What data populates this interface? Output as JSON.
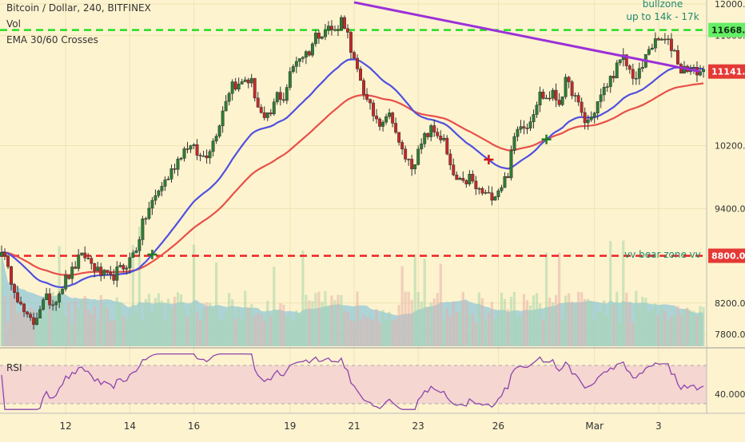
{
  "header": {
    "symbol": "Bitcoin / Dollar, 240, BITFINEX",
    "vol_label": "Vol",
    "ema_label": "EMA 30/60 Crosses",
    "rsi_label": "RSI"
  },
  "annotations": {
    "bull_zone_line1": "bullzone",
    "bull_zone_line2": "up to 14k - 17k",
    "bear_zone": "vv bear zone vv"
  },
  "colors": {
    "background": "#fdf3cf",
    "bull_candle": "#2e7d32",
    "bear_candle": "#c62828",
    "ema_fast": "#5050e0",
    "ema_slow": "#e8504a",
    "trendline": "#9b30d8",
    "bull_zone": "#22dd22",
    "bear_zone": "#ee2222",
    "volume_ma": "#8ac4d8",
    "rsi_line": "#8e44ad",
    "rsi_band": "#f5d6d0"
  },
  "chart_data": {
    "type": "candlestick",
    "price_axis": {
      "range": [
        7650,
        12050
      ],
      "ticks": [
        "12000.0",
        "11600.0",
        "10200.0",
        "9400.0",
        "8200.0",
        "7800.0"
      ],
      "tick_values": [
        12000,
        11600,
        10200,
        9400,
        8200,
        7800
      ]
    },
    "x_axis": {
      "ticks": [
        "12",
        "14",
        "16",
        "19",
        "21",
        "23",
        "26",
        "Mar",
        "3"
      ],
      "tick_bars": [
        20,
        40,
        60,
        90,
        110,
        130,
        155,
        185,
        205
      ]
    },
    "levels": {
      "bull_zone_price": 11668.6,
      "bull_zone_label": "11668.6",
      "bear_zone_price": 8800,
      "bear_zone_label": "8800.0",
      "last_price": 11141,
      "last_price_label": "11141.0"
    },
    "trendline": {
      "from": {
        "bar": 110,
        "price": 12020
      },
      "to": {
        "bar": 218,
        "price": 11141
      }
    },
    "price_path": [
      [
        0,
        8900
      ],
      [
        2,
        8600
      ],
      [
        4,
        8400
      ],
      [
        6,
        8150
      ],
      [
        8,
        8000
      ],
      [
        10,
        7950
      ],
      [
        12,
        8150
      ],
      [
        14,
        8250
      ],
      [
        16,
        8200
      ],
      [
        18,
        8350
      ],
      [
        20,
        8500
      ],
      [
        22,
        8600
      ],
      [
        24,
        8750
      ],
      [
        26,
        8800
      ],
      [
        28,
        8700
      ],
      [
        30,
        8600
      ],
      [
        32,
        8550
      ],
      [
        34,
        8500
      ],
      [
        36,
        8600
      ],
      [
        38,
        8650
      ],
      [
        40,
        8750
      ],
      [
        42,
        8900
      ],
      [
        44,
        9200
      ],
      [
        46,
        9400
      ],
      [
        48,
        9550
      ],
      [
        50,
        9700
      ],
      [
        52,
        9800
      ],
      [
        54,
        9950
      ],
      [
        56,
        10100
      ],
      [
        58,
        10200
      ],
      [
        60,
        10150
      ],
      [
        62,
        10050
      ],
      [
        64,
        10100
      ],
      [
        66,
        10250
      ],
      [
        68,
        10500
      ],
      [
        70,
        10800
      ],
      [
        72,
        11000
      ],
      [
        74,
        10950
      ],
      [
        76,
        11050
      ],
      [
        78,
        11000
      ],
      [
        80,
        10700
      ],
      [
        82,
        10500
      ],
      [
        84,
        10600
      ],
      [
        86,
        10850
      ],
      [
        88,
        10800
      ],
      [
        90,
        11100
      ],
      [
        92,
        11300
      ],
      [
        94,
        11350
      ],
      [
        96,
        11400
      ],
      [
        98,
        11600
      ],
      [
        100,
        11650
      ],
      [
        102,
        11700
      ],
      [
        104,
        11650
      ],
      [
        106,
        11800
      ],
      [
        107,
        11750
      ],
      [
        108,
        11600
      ],
      [
        109,
        11350
      ],
      [
        110,
        11250
      ],
      [
        112,
        11050
      ],
      [
        114,
        10750
      ],
      [
        116,
        10600
      ],
      [
        118,
        10500
      ],
      [
        120,
        10600
      ],
      [
        122,
        10550
      ],
      [
        124,
        10200
      ],
      [
        126,
        10050
      ],
      [
        128,
        9950
      ],
      [
        130,
        10100
      ],
      [
        132,
        10300
      ],
      [
        134,
        10400
      ],
      [
        136,
        10350
      ],
      [
        138,
        10250
      ],
      [
        140,
        9900
      ],
      [
        142,
        9750
      ],
      [
        144,
        9700
      ],
      [
        146,
        9800
      ],
      [
        148,
        9650
      ],
      [
        150,
        9600
      ],
      [
        152,
        9550
      ],
      [
        154,
        9600
      ],
      [
        156,
        9700
      ],
      [
        158,
        9850
      ],
      [
        160,
        10300
      ],
      [
        162,
        10500
      ],
      [
        164,
        10450
      ],
      [
        166,
        10650
      ],
      [
        168,
        10850
      ],
      [
        170,
        10800
      ],
      [
        172,
        10850
      ],
      [
        174,
        10750
      ],
      [
        176,
        11000
      ],
      [
        178,
        10900
      ],
      [
        180,
        10700
      ],
      [
        182,
        10500
      ],
      [
        184,
        10550
      ],
      [
        186,
        10750
      ],
      [
        188,
        10900
      ],
      [
        190,
        11050
      ],
      [
        192,
        11200
      ],
      [
        194,
        11300
      ],
      [
        196,
        11150
      ],
      [
        198,
        11050
      ],
      [
        200,
        11200
      ],
      [
        202,
        11450
      ],
      [
        204,
        11500
      ],
      [
        206,
        11550
      ],
      [
        208,
        11500
      ],
      [
        210,
        11400
      ],
      [
        212,
        11150
      ],
      [
        214,
        11200
      ],
      [
        216,
        11141
      ],
      [
        218,
        11141
      ]
    ],
    "rsi": {
      "ticks": [
        "40.0000"
      ],
      "tick_values": [
        40
      ],
      "range": [
        20,
        85
      ],
      "band": [
        30,
        70
      ],
      "last_value": 55
    },
    "ema_crosses": [
      {
        "bar": 47,
        "type": "bull"
      },
      {
        "bar": 152,
        "type": "bear"
      },
      {
        "bar": 170,
        "type": "bull"
      }
    ]
  }
}
